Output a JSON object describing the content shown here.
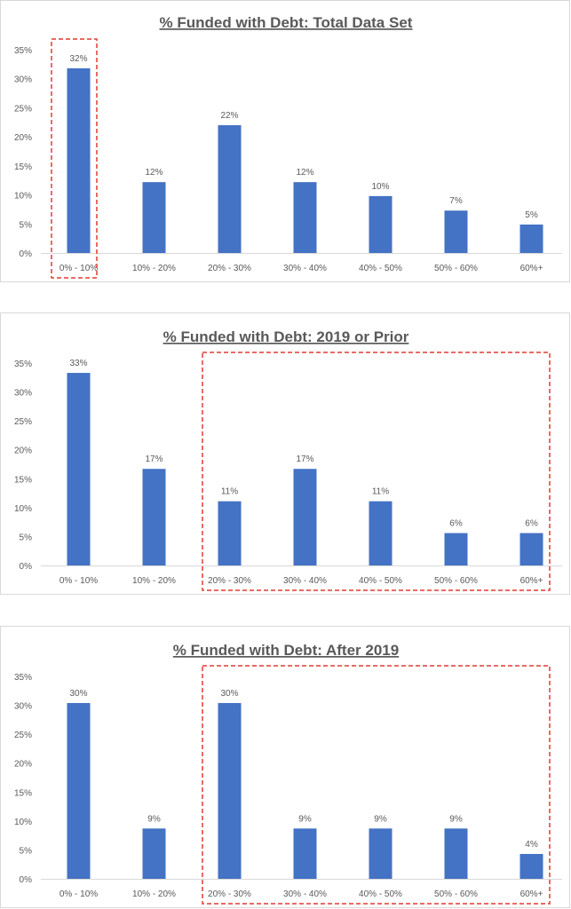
{
  "chart_data": [
    {
      "type": "bar",
      "title": "% Funded with Debt: Total Data Set",
      "xlabel": "",
      "ylabel": "",
      "ylim": [
        0,
        35
      ],
      "yticks": [
        "0%",
        "5%",
        "10%",
        "15%",
        "20%",
        "25%",
        "30%",
        "35%"
      ],
      "categories": [
        "0% - 10%",
        "10% - 20%",
        "20% - 30%",
        "30% - 40%",
        "40% - 50%",
        "50% - 60%",
        "60%+"
      ],
      "values": [
        31.8,
        12.2,
        22.0,
        12.2,
        9.8,
        7.3,
        4.9
      ],
      "data_labels": [
        "32%",
        "12%",
        "22%",
        "12%",
        "10%",
        "7%",
        "5%"
      ],
      "bar_color": "#4472c4",
      "highlight_color": "#e03c31",
      "highlight": {
        "from": 0,
        "to": 0
      },
      "grid": false
    },
    {
      "type": "bar",
      "title": "% Funded with Debt: 2019 or Prior",
      "xlabel": "",
      "ylabel": "",
      "ylim": [
        0,
        35
      ],
      "yticks": [
        "0%",
        "5%",
        "10%",
        "15%",
        "20%",
        "25%",
        "30%",
        "35%"
      ],
      "categories": [
        "0% - 10%",
        "10% - 20%",
        "20% - 30%",
        "30% - 40%",
        "40% - 50%",
        "50% - 60%",
        "60%+"
      ],
      "values": [
        33.3,
        16.7,
        11.1,
        16.7,
        11.1,
        5.6,
        5.6
      ],
      "data_labels": [
        "33%",
        "17%",
        "11%",
        "17%",
        "11%",
        "6%",
        "6%"
      ],
      "bar_color": "#4472c4",
      "highlight_color": "#e03c31",
      "highlight": {
        "from": 2,
        "to": 6
      },
      "grid": false
    },
    {
      "type": "bar",
      "title": "% Funded with Debt: After 2019",
      "xlabel": "",
      "ylabel": "",
      "ylim": [
        0,
        35
      ],
      "yticks": [
        "0%",
        "5%",
        "10%",
        "15%",
        "20%",
        "25%",
        "30%",
        "35%"
      ],
      "categories": [
        "0% - 10%",
        "10% - 20%",
        "20% - 30%",
        "30% - 40%",
        "40% - 50%",
        "50% - 60%",
        "60%+"
      ],
      "values": [
        30.4,
        8.7,
        30.4,
        8.7,
        8.7,
        8.7,
        4.3
      ],
      "data_labels": [
        "30%",
        "9%",
        "30%",
        "9%",
        "9%",
        "9%",
        "4%"
      ],
      "bar_color": "#4472c4",
      "highlight_color": "#e03c31",
      "highlight": {
        "from": 2,
        "to": 6
      },
      "grid": false
    }
  ]
}
